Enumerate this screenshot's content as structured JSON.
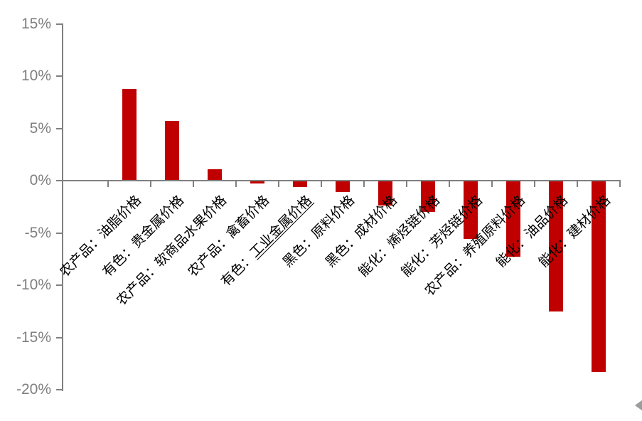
{
  "chart_data": {
    "type": "bar",
    "title": "",
    "categories": [
      "农产品：油脂价格",
      "有色：贵金属价格",
      "农产品：软商品水果价格",
      "农产品：禽畜价格",
      "有色：工业金属价格",
      "黑色：原料价格",
      "黑色：成材价格",
      "能化：烯烃链价格",
      "能化：芳烃链价格",
      "农产品：养殖原料价格",
      "能化：油品价格",
      "能化：建材价格"
    ],
    "values": [
      8.8,
      5.7,
      1.1,
      -0.3,
      -0.6,
      -1.1,
      -2.4,
      -3.0,
      -5.6,
      -7.3,
      -12.5,
      -18.3
    ],
    "unit": "%",
    "xlabel": "",
    "ylabel": "",
    "ylim": [
      -20,
      15
    ],
    "y_tick_step": 5,
    "y_ticks": [
      "15%",
      "10%",
      "5%",
      "0%",
      "-5%",
      "-10%",
      "-15%",
      "-20%"
    ],
    "grid": false,
    "legend_position": "none",
    "bar_color": "#C00000",
    "axis_color": "#808080",
    "y_tick_label_color": "#7F7F7F",
    "category_label_color": "#000000",
    "underline": {
      "category_index": 4,
      "part": "工业金属价格"
    }
  },
  "decorations": {
    "corner_arrow": "left-triangle",
    "corner_arrow_color": "#9D9D9D"
  }
}
